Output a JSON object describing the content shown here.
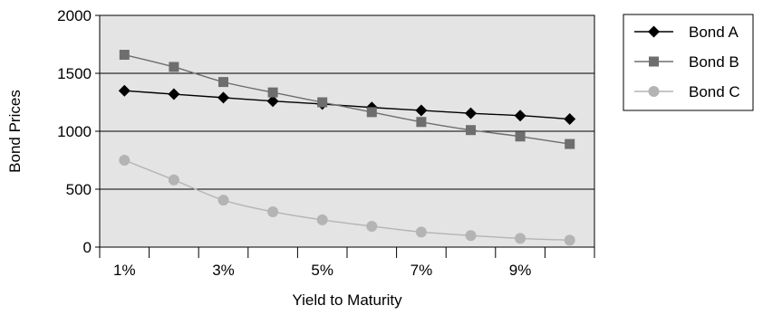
{
  "chart_data": {
    "type": "line",
    "xlabel": "Yield to Maturity",
    "ylabel": "Bond Prices",
    "ylim": [
      0,
      2000
    ],
    "yticks": [
      0,
      500,
      1000,
      1500,
      2000
    ],
    "x": [
      "1%",
      "2%",
      "3%",
      "4%",
      "5%",
      "6%",
      "7%",
      "8%",
      "9%",
      "10%"
    ],
    "xtick_labels_shown": [
      "1%",
      "3%",
      "5%",
      "7%",
      "9%"
    ],
    "grid": "horizontal",
    "plot_background": "#e4e4e4",
    "legend_position": "right",
    "series": [
      {
        "name": "Bond A",
        "marker": "diamond",
        "color": "#000000",
        "values": [
          1350,
          1320,
          1290,
          1260,
          1235,
          1205,
          1180,
          1155,
          1135,
          1105
        ]
      },
      {
        "name": "Bond B",
        "marker": "square",
        "color": "#6e6e6e",
        "values": [
          1660,
          1555,
          1425,
          1335,
          1250,
          1165,
          1080,
          1010,
          955,
          890
        ]
      },
      {
        "name": "Bond C",
        "marker": "circle",
        "color": "#b4b4b4",
        "values": [
          750,
          580,
          405,
          305,
          235,
          180,
          130,
          100,
          75,
          60
        ]
      }
    ]
  }
}
